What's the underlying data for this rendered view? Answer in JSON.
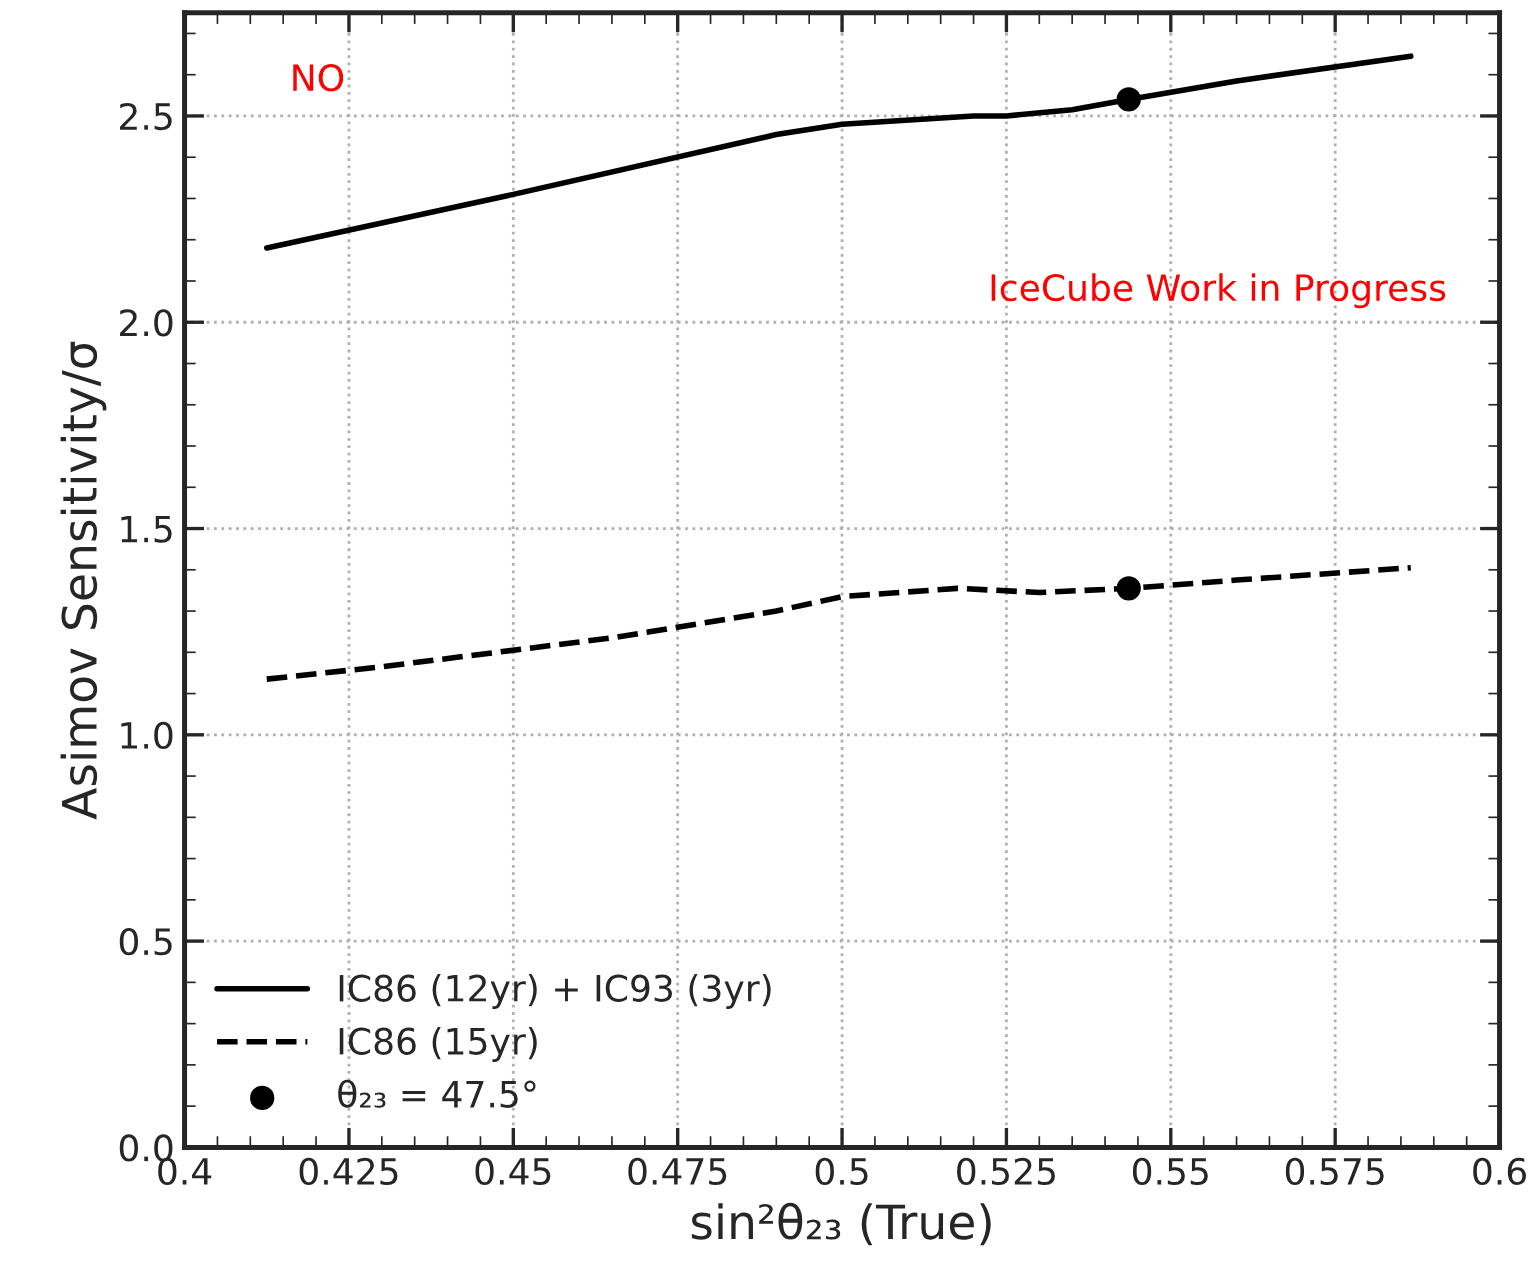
{
  "chart_data": {
    "type": "line",
    "xlabel": "sin²θ₂₃ (True)",
    "ylabel": "Asimov Sensitivity/σ",
    "xlim": [
      0.4,
      0.6
    ],
    "xticks": [
      0.4,
      0.425,
      0.45,
      0.475,
      0.5,
      0.525,
      0.55,
      0.575,
      0.6
    ],
    "ylim": [
      0.0,
      2.75
    ],
    "yticks": [
      {
        "value": 0,
        "label": "0.0"
      },
      0.5,
      {
        "value": 1,
        "label": "1.0"
      },
      1.5,
      {
        "value": 2,
        "label": "2.0"
      },
      2.5
    ],
    "grid": true,
    "legend": "bottom left",
    "annotations": [
      "NO",
      "IceCube Work in Progress"
    ],
    "series": [
      {
        "name": "IC86 (12yr) + IC93 (3yr)",
        "color": "#000000",
        "line_style": "solid",
        "x": [
          0.4125,
          0.45,
          0.49,
          0.5,
          0.52,
          0.525,
          0.535,
          0.5436,
          0.56,
          0.5865
        ],
        "values": [
          2.18,
          2.31,
          2.455,
          2.48,
          2.5,
          2.5,
          2.515,
          2.54,
          2.585,
          2.645
        ]
      },
      {
        "name": "IC86 (15yr)",
        "color": "#000000",
        "line_style": "dashed",
        "x": [
          0.4125,
          0.43,
          0.465,
          0.49,
          0.5,
          0.5175,
          0.53,
          0.5436,
          0.56,
          0.5865
        ],
        "values": [
          1.135,
          1.165,
          1.235,
          1.3,
          1.335,
          1.355,
          1.345,
          1.355,
          1.375,
          1.405
        ]
      },
      {
        "name": "θ₂₃ = 47.5°",
        "type": "scatter",
        "marker": "circle",
        "color": "#000000",
        "x": [
          0.5436,
          0.5436
        ],
        "values": [
          2.54,
          1.355
        ]
      }
    ]
  }
}
